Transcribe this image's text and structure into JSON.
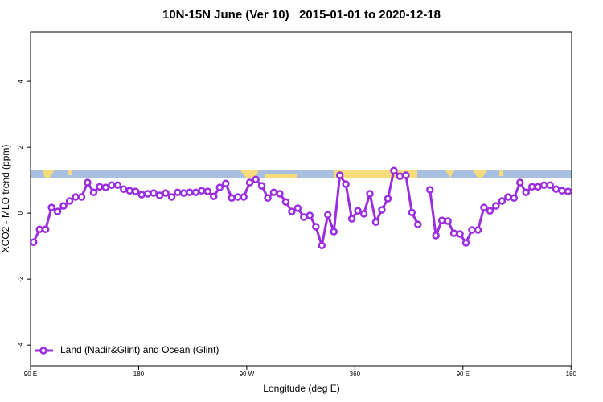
{
  "chart_data": {
    "type": "line",
    "title": "10N-15N June (Ver 10)   2015-01-01 to 2020-12-18",
    "x_label": "Longitude (deg E)",
    "y_label": "XCO2 - MLO trend (ppm)",
    "xlim": [
      90,
      540.5
    ],
    "ylim": [
      -4.63,
      5.49
    ],
    "xticks": [
      {
        "value": 90,
        "label": "90 E"
      },
      {
        "value": 180,
        "label": "180"
      },
      {
        "value": 270,
        "label": "90 W"
      },
      360,
      {
        "value": 450,
        "label": "90 E"
      },
      {
        "value": 540,
        "label": "180"
      }
    ],
    "yticks": [
      -4,
      -2,
      0,
      2,
      4
    ],
    "legend": "bottom-left",
    "x": [
      92.5,
      97.5,
      102.5,
      107.5,
      112.5,
      117.5,
      122.5,
      127.5,
      132.5,
      137.5,
      142.5,
      147.5,
      152.5,
      157.5,
      162.5,
      167.5,
      172.5,
      177.5,
      182.5,
      187.5,
      192.5,
      197.5,
      202.5,
      207.5,
      212.5,
      217.5,
      222.5,
      227.5,
      232.5,
      237.5,
      242.5,
      247.5,
      252.5,
      257.5,
      262.5,
      267.5,
      272.5,
      277.5,
      282.5,
      287.5,
      292.5,
      297.5,
      302.5,
      307.5,
      312.5,
      317.5,
      322.5,
      327.5,
      332.5,
      337.5,
      342.5,
      347.5,
      352.5,
      357.5,
      362.5,
      367.5,
      372.5,
      377.5,
      382.5,
      387.5,
      392.5,
      397.5,
      402.5,
      407.5,
      412.5,
      417.5,
      422.5,
      427.5,
      432.5,
      437.5,
      442.5,
      447.5,
      452.5,
      457.5,
      462.5,
      467.5,
      472.5,
      477.5,
      482.5,
      487.5,
      492.5,
      497.5,
      502.5,
      507.5,
      512.5,
      517.5,
      522.5,
      527.5,
      532.5,
      537.5
    ],
    "series": [
      {
        "name": "Land (Nadir&Glint) and Ocean (Glint)",
        "color": "#9b2de0",
        "values": [
          -0.88,
          -0.49,
          -0.49,
          0.17,
          0.05,
          0.22,
          0.37,
          0.49,
          0.49,
          0.93,
          0.63,
          0.8,
          0.78,
          0.85,
          0.85,
          0.73,
          0.68,
          0.66,
          0.56,
          0.59,
          0.61,
          0.54,
          0.61,
          0.49,
          0.63,
          0.61,
          0.63,
          0.63,
          0.68,
          0.66,
          0.51,
          0.78,
          0.9,
          0.46,
          0.49,
          0.49,
          0.93,
          1.02,
          0.83,
          0.46,
          0.63,
          0.59,
          0.34,
          0.05,
          0.15,
          -0.12,
          -0.07,
          -0.41,
          -0.98,
          -0.05,
          -0.56,
          1.15,
          0.88,
          -0.17,
          0.07,
          -0.02,
          0.59,
          -0.27,
          0.1,
          0.44,
          1.29,
          1.12,
          1.15,
          0.02,
          -0.34,
          null,
          0.71,
          -0.68,
          -0.22,
          -0.24,
          -0.61,
          -0.63,
          -0.9,
          -0.51,
          -0.51,
          0.17,
          0.07,
          0.22,
          0.37,
          0.49,
          0.46,
          0.93,
          0.63,
          0.8,
          0.8,
          0.85,
          0.85,
          0.73,
          0.68,
          0.66
        ]
      }
    ]
  }
}
